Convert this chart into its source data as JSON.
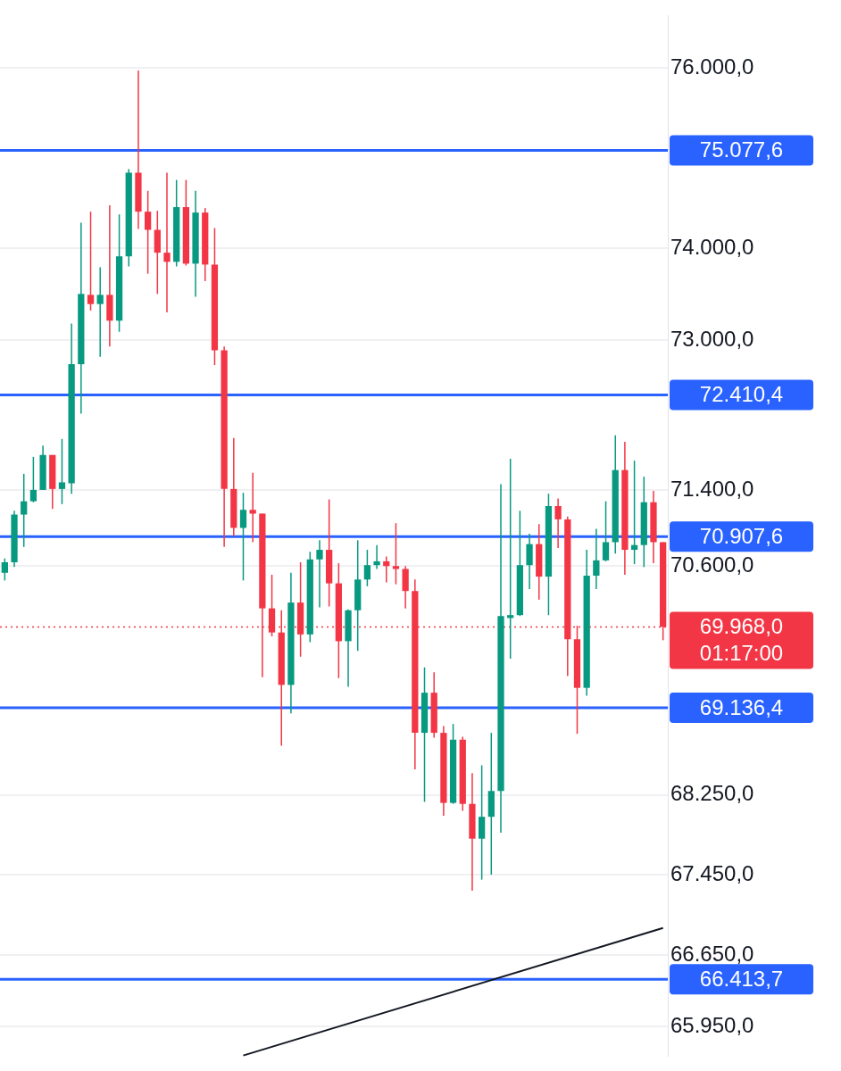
{
  "chart_data": {
    "type": "candlestick",
    "categories": [
      null,
      null,
      null,
      null,
      null,
      null,
      null,
      null,
      null,
      null,
      null,
      null,
      null,
      null,
      null,
      null,
      null,
      null,
      null,
      null,
      null,
      null,
      null,
      null,
      null,
      null,
      null,
      null,
      null,
      null,
      null,
      null,
      null,
      null,
      null,
      null,
      null,
      null,
      null,
      null,
      null,
      null,
      null,
      null,
      null,
      null,
      null,
      null,
      null,
      null,
      null,
      null,
      null,
      null,
      null,
      null,
      null,
      null,
      null,
      null,
      null,
      null,
      null,
      null,
      null,
      null,
      null,
      null,
      null,
      null
    ],
    "ohlc": [
      [
        70530,
        70680,
        70450,
        70640
      ],
      [
        70640,
        71180,
        70590,
        71140
      ],
      [
        71140,
        71570,
        70800,
        71280
      ],
      [
        71280,
        71750,
        71270,
        71400
      ],
      [
        71400,
        71870,
        71400,
        71770
      ],
      [
        71770,
        71770,
        71200,
        71410
      ],
      [
        71410,
        71940,
        71250,
        71480
      ],
      [
        71470,
        73180,
        71360,
        72740
      ],
      [
        72740,
        74280,
        72210,
        73500
      ],
      [
        73490,
        74400,
        73320,
        73390
      ],
      [
        73390,
        73790,
        72820,
        73490
      ],
      [
        73490,
        74470,
        72930,
        73210
      ],
      [
        73210,
        74370,
        73090,
        73910
      ],
      [
        73910,
        74870,
        73800,
        74830
      ],
      [
        74830,
        75970,
        74210,
        74400
      ],
      [
        74400,
        74630,
        73720,
        74200
      ],
      [
        74200,
        74410,
        73500,
        73950
      ],
      [
        73950,
        74830,
        73300,
        73850
      ],
      [
        73850,
        74750,
        73800,
        74450
      ],
      [
        74450,
        74750,
        73810,
        73830
      ],
      [
        73830,
        74630,
        73470,
        74390
      ],
      [
        74390,
        74440,
        73640,
        73820
      ],
      [
        73820,
        74220,
        72730,
        72890
      ],
      [
        72890,
        72930,
        70800,
        71410
      ],
      [
        71410,
        71950,
        70910,
        71000
      ],
      [
        71000,
        71370,
        70450,
        71190
      ],
      [
        71190,
        71580,
        70850,
        71150
      ],
      [
        71150,
        71150,
        69450,
        70160
      ],
      [
        70160,
        70510,
        69870,
        69910
      ],
      [
        69910,
        70140,
        68750,
        69370
      ],
      [
        69370,
        70530,
        69080,
        70220
      ],
      [
        70220,
        70640,
        69660,
        69890
      ],
      [
        69890,
        70750,
        69810,
        70670
      ],
      [
        70670,
        70870,
        70170,
        70770
      ],
      [
        70770,
        71300,
        70180,
        70420
      ],
      [
        70420,
        70630,
        69440,
        69820
      ],
      [
        69820,
        70150,
        69350,
        70140
      ],
      [
        70140,
        70870,
        69720,
        70460
      ],
      [
        70460,
        70770,
        70390,
        70610
      ],
      [
        70610,
        70820,
        70570,
        70650
      ],
      [
        70650,
        70700,
        70430,
        70600
      ],
      [
        70600,
        71050,
        70410,
        70570
      ],
      [
        70570,
        70600,
        70160,
        70340
      ],
      [
        70340,
        70460,
        68510,
        68880
      ],
      [
        68880,
        69550,
        68180,
        69290
      ],
      [
        69290,
        69500,
        68830,
        68880
      ],
      [
        68880,
        68950,
        68040,
        68170
      ],
      [
        68170,
        68970,
        68160,
        68810
      ],
      [
        68810,
        68840,
        68090,
        68160
      ],
      [
        68160,
        68470,
        67290,
        67810
      ],
      [
        67810,
        68550,
        67400,
        68030
      ],
      [
        68030,
        68880,
        67450,
        68290
      ],
      [
        68290,
        71460,
        67870,
        70080
      ],
      [
        70060,
        71730,
        69640,
        70090
      ],
      [
        70090,
        71180,
        70080,
        70610
      ],
      [
        70610,
        70940,
        70360,
        70830
      ],
      [
        70830,
        71040,
        70250,
        70490
      ],
      [
        70490,
        71360,
        70090,
        71230
      ],
      [
        71230,
        71310,
        70790,
        71090
      ],
      [
        71090,
        71120,
        69460,
        69840
      ],
      [
        69840,
        69980,
        68870,
        69340
      ],
      [
        69340,
        70770,
        69260,
        70500
      ],
      [
        70500,
        70990,
        70360,
        70660
      ],
      [
        70660,
        71280,
        70650,
        70850
      ],
      [
        70850,
        71980,
        70730,
        71610
      ],
      [
        71610,
        71910,
        70510,
        70770
      ],
      [
        70770,
        71710,
        70620,
        70820
      ],
      [
        70820,
        71540,
        70590,
        71270
      ],
      [
        71270,
        71390,
        70630,
        70850
      ],
      [
        70850,
        70850,
        69830,
        69968
      ]
    ],
    "colors": [
      "#089981",
      "#089981",
      "#089981",
      "#089981",
      "#089981",
      "#f23645",
      "#089981",
      "#089981",
      "#089981",
      "#f23645",
      "#089981",
      "#f23645",
      "#089981",
      "#089981",
      "#f23645",
      "#f23645",
      "#f23645",
      "#f23645",
      "#089981",
      "#f23645",
      "#089981",
      "#f23645",
      "#f23645",
      "#f23645",
      "#f23645",
      "#089981",
      "#f23645",
      "#f23645",
      "#f23645",
      "#f23645",
      "#089981",
      "#f23645",
      "#089981",
      "#089981",
      "#f23645",
      "#f23645",
      "#089981",
      "#089981",
      "#089981",
      "#089981",
      "#f23645",
      "#f23645",
      "#f23645",
      "#f23645",
      "#089981",
      "#f23645",
      "#f23645",
      "#089981",
      "#f23645",
      "#f23645",
      "#089981",
      "#089981",
      "#089981",
      "#089981",
      "#089981",
      "#089981",
      "#f23645",
      "#089981",
      "#f23645",
      "#f23645",
      "#f23645",
      "#089981",
      "#089981",
      "#089981",
      "#089981",
      "#f23645",
      "#089981",
      "#089981",
      "#f23645",
      "#f23645"
    ],
    "series": [
      {
        "type": "line",
        "values": [
          null,
          null,
          null,
          null,
          null,
          null,
          null,
          null,
          null,
          null,
          null,
          null,
          null,
          null,
          null,
          null,
          null,
          null,
          null,
          null,
          null,
          null,
          null,
          null,
          null,
          65670,
          null,
          null,
          null,
          null,
          null,
          null,
          null,
          null,
          null,
          null,
          null,
          null,
          null,
          null,
          null,
          null,
          null,
          null,
          null,
          null,
          null,
          null,
          null,
          null,
          null,
          null,
          null,
          null,
          null,
          null,
          null,
          null,
          null,
          null,
          null,
          null,
          null,
          null,
          null,
          null,
          null,
          null,
          null,
          66920
        ],
        "color": "#131722"
      }
    ],
    "ylim": [
      65670,
      76590
    ],
    "yticks": [
      {
        "value": 76000,
        "label": "76.000,0"
      },
      {
        "value": 74000,
        "label": "74.000,0"
      },
      {
        "value": 73000,
        "label": "73.000,0"
      },
      {
        "value": 71400,
        "label": "71.400,0"
      },
      {
        "value": 70600,
        "label": "70.600,0"
      },
      {
        "value": 68250,
        "label": "68.250,0"
      },
      {
        "value": 67450,
        "label": "67.450,0"
      },
      {
        "value": 66650,
        "label": "66.650,0"
      },
      {
        "value": 65950,
        "label": "65.950,0"
      }
    ],
    "log": "y",
    "grid": "y",
    "tick_labels": "y",
    "ref_lines": [
      {
        "axis": "y",
        "value": 75077.6,
        "label": "75.077,6",
        "color": "#2962ff",
        "line_style": "solid"
      },
      {
        "axis": "y",
        "value": 72410.4,
        "label": "72.410,4",
        "color": "#2962ff",
        "line_style": "solid"
      },
      {
        "axis": "y",
        "value": 70907.6,
        "label": "70.907,6",
        "color": "#2962ff",
        "line_style": "solid"
      },
      {
        "axis": "y",
        "value": 69136.4,
        "label": "69.136,4",
        "color": "#2962ff",
        "line_style": "solid"
      },
      {
        "axis": "y",
        "value": 66413.7,
        "label": "66.413,7",
        "color": "#2962ff",
        "line_style": "solid"
      },
      {
        "axis": "y",
        "value": 69968.0,
        "label": "69.968,0",
        "color": "#f23645",
        "line_style": "dotted"
      }
    ],
    "annotations": [
      "01:17:00"
    ]
  }
}
